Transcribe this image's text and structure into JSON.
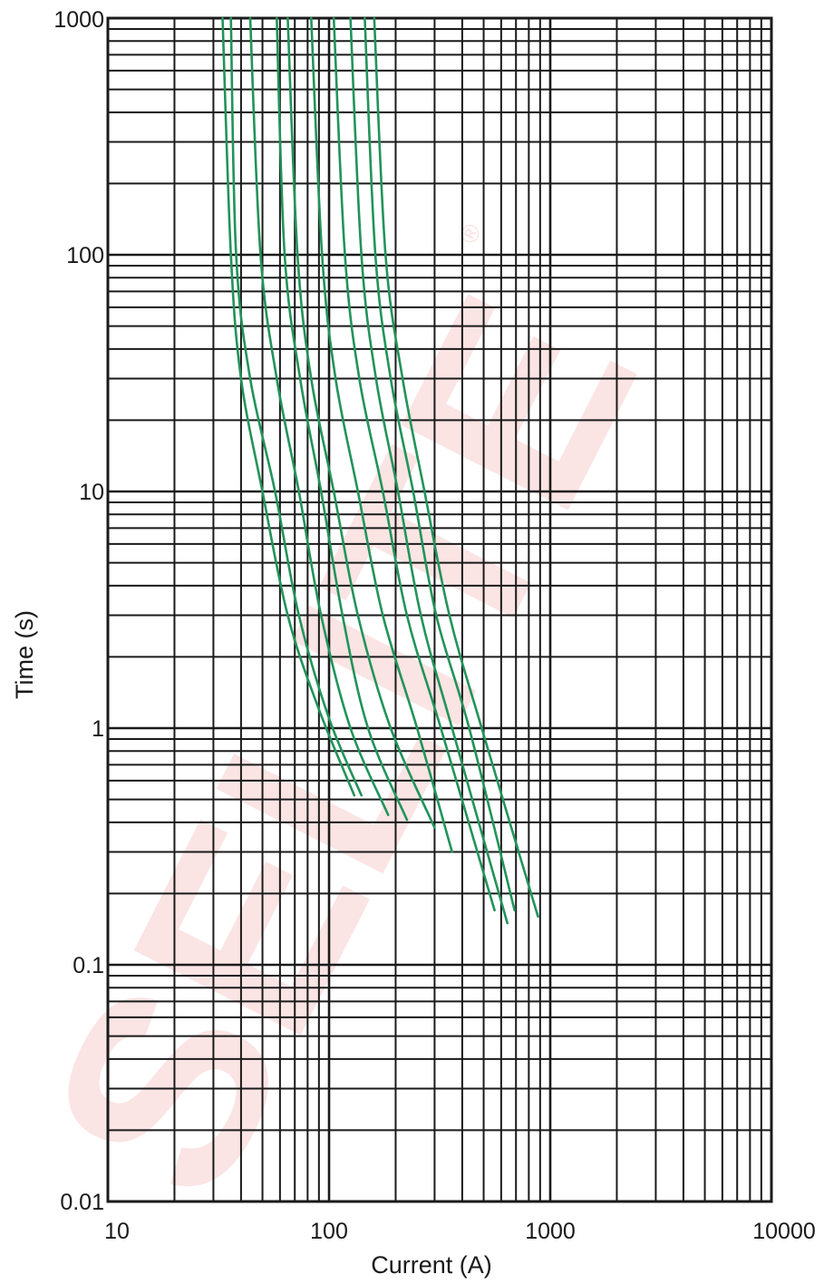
{
  "chart_data": {
    "type": "line",
    "title": "",
    "xlabel": "Current (A)",
    "ylabel": "Time (s)",
    "x_scale": "log",
    "y_scale": "log",
    "xlim": [
      10,
      10000
    ],
    "ylim": [
      0.01,
      1000
    ],
    "grid": true,
    "x_ticks": [
      10,
      100,
      1000,
      10000
    ],
    "x_tick_labels": [
      "10",
      "100",
      "1000",
      "10000"
    ],
    "y_ticks": [
      0.01,
      0.1,
      1,
      10,
      100,
      1000
    ],
    "y_tick_labels": [
      "0.01",
      "0.1",
      "1",
      "10",
      "100",
      "1000"
    ],
    "line_color": "#22935a",
    "series": [
      {
        "points": [
          [
            33,
            1000
          ],
          [
            36,
            100
          ],
          [
            40,
            30
          ],
          [
            50,
            10
          ],
          [
            65,
            3
          ],
          [
            90,
            1.2
          ],
          [
            130,
            0.52
          ]
        ]
      },
      {
        "points": [
          [
            36,
            1000
          ],
          [
            38,
            100
          ],
          [
            44,
            30
          ],
          [
            57,
            10
          ],
          [
            73,
            3
          ],
          [
            100,
            1.1
          ],
          [
            140,
            0.52
          ]
        ]
      },
      {
        "points": [
          [
            44,
            1000
          ],
          [
            49,
            100
          ],
          [
            58,
            30
          ],
          [
            73,
            10
          ],
          [
            92,
            3
          ],
          [
            125,
            1.0
          ],
          [
            185,
            0.43
          ]
        ]
      },
      {
        "points": [
          [
            58,
            1000
          ],
          [
            63,
            100
          ],
          [
            74,
            30
          ],
          [
            92,
            10
          ],
          [
            115,
            3
          ],
          [
            150,
            1.0
          ],
          [
            225,
            0.41
          ]
        ]
      },
      {
        "points": [
          [
            65,
            1000
          ],
          [
            72,
            100
          ],
          [
            83,
            30
          ],
          [
            105,
            10
          ],
          [
            135,
            3
          ],
          [
            190,
            1.0
          ],
          [
            300,
            0.38
          ]
        ]
      },
      {
        "points": [
          [
            83,
            1000
          ],
          [
            93,
            100
          ],
          [
            107,
            30
          ],
          [
            135,
            10
          ],
          [
            175,
            3
          ],
          [
            250,
            1.0
          ],
          [
            360,
            0.3
          ]
        ]
      },
      {
        "points": [
          [
            105,
            1000
          ],
          [
            118,
            100
          ],
          [
            137,
            30
          ],
          [
            175,
            10
          ],
          [
            225,
            3
          ],
          [
            320,
            1.0
          ],
          [
            560,
            0.17
          ]
        ]
      },
      {
        "points": [
          [
            125,
            1000
          ],
          [
            140,
            100
          ],
          [
            163,
            30
          ],
          [
            205,
            10
          ],
          [
            260,
            3
          ],
          [
            360,
            1.0
          ],
          [
            640,
            0.15
          ]
        ]
      },
      {
        "points": [
          [
            145,
            1000
          ],
          [
            162,
            100
          ],
          [
            190,
            30
          ],
          [
            240,
            10
          ],
          [
            305,
            3
          ],
          [
            430,
            1.0
          ],
          [
            690,
            0.17
          ]
        ]
      },
      {
        "points": [
          [
            160,
            1000
          ],
          [
            180,
            100
          ],
          [
            215,
            30
          ],
          [
            270,
            10
          ],
          [
            350,
            3
          ],
          [
            490,
            1.0
          ],
          [
            880,
            0.16
          ]
        ]
      }
    ]
  },
  "watermark": {
    "text": "SELITE",
    "registered": "®"
  },
  "colors": {
    "grid": "#1a1a1a",
    "watermark": "#e8393a"
  }
}
